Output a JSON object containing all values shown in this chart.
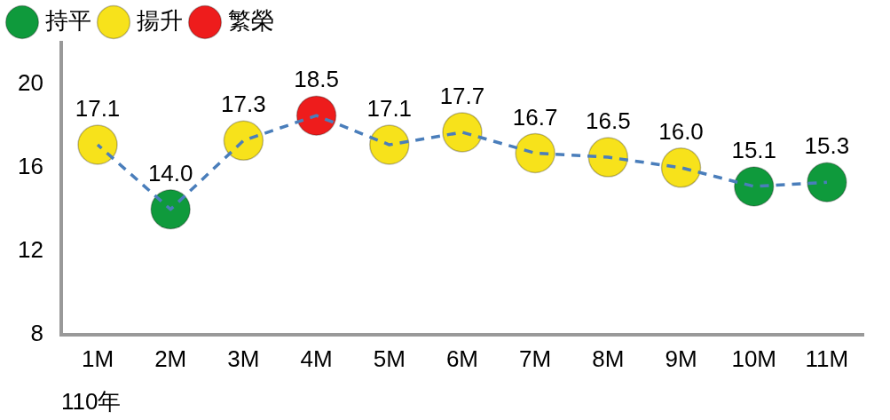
{
  "chart_data": {
    "type": "line",
    "xlabel": "110年",
    "categories": [
      "1M",
      "2M",
      "3M",
      "4M",
      "5M",
      "6M",
      "7M",
      "8M",
      "9M",
      "10M",
      "11M"
    ],
    "series": [
      {
        "color": "#4a7ebb",
        "marker": "none",
        "values": [
          17.1,
          14.0,
          17.3,
          18.5,
          17.1,
          17.7,
          16.7,
          16.5,
          16.0,
          15.1,
          15.3
        ],
        "value_labels": [
          "17.1",
          "14.0",
          "17.3",
          "18.5",
          "17.1",
          "17.7",
          "16.7",
          "16.5",
          "16.0",
          "15.1",
          "15.3"
        ]
      },
      {
        "type": "scatter",
        "name": "持平",
        "color": "#0f9a3c",
        "values": [
          null,
          14.0,
          null,
          null,
          null,
          null,
          null,
          null,
          null,
          15.1,
          15.3
        ]
      },
      {
        "type": "scatter",
        "name": "揚升",
        "color": "#f7e21b",
        "values": [
          17.1,
          null,
          17.3,
          null,
          17.1,
          17.7,
          16.7,
          16.5,
          16.0,
          null,
          null
        ]
      },
      {
        "type": "scatter",
        "name": "繁榮",
        "color": "#ee1c1c",
        "values": [
          null,
          null,
          null,
          18.5,
          null,
          null,
          null,
          null,
          null,
          null,
          null
        ]
      }
    ],
    "ylim": [
      8,
      22
    ],
    "yticks": [
      8,
      12,
      16,
      20
    ],
    "grid": false,
    "legend": "top left",
    "line_style": "dashed",
    "marker": "circle"
  }
}
